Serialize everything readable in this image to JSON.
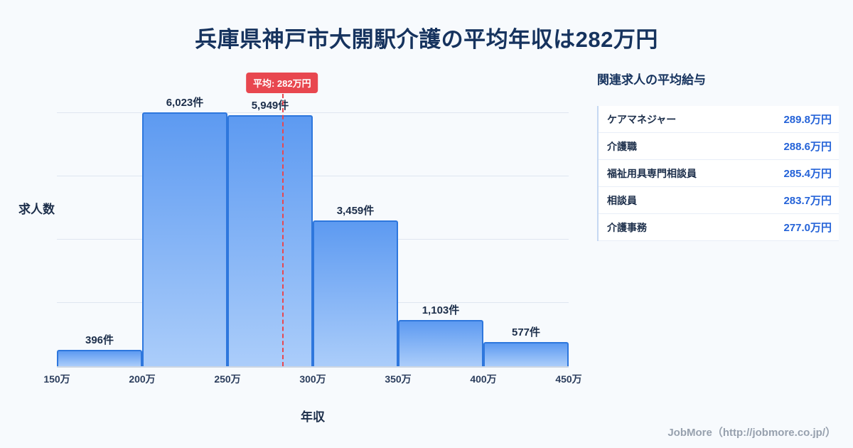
{
  "title": "兵庫県神戸市大開駅介護の平均年収は282万円",
  "chart_data": {
    "type": "bar",
    "title": "兵庫県神戸市大開駅介護の平均年収は282万円",
    "ylabel": "求人数",
    "xlabel": "年収",
    "categories": [
      "150万-200万",
      "200万-250万",
      "250万-300万",
      "300万-350万",
      "350万-400万",
      "400万-450万"
    ],
    "values": [
      396,
      6023,
      5949,
      3459,
      1103,
      577
    ],
    "value_labels": [
      "396件",
      "6,023件",
      "5,949件",
      "3,459件",
      "1,103件",
      "577件"
    ],
    "x_ticks": [
      "150万",
      "200万",
      "250万",
      "300万",
      "350万",
      "400万",
      "450万"
    ],
    "x_range": [
      150,
      450
    ],
    "ylim": [
      0,
      7000
    ],
    "gridlines": [
      1500,
      3000,
      4500,
      6000
    ],
    "grid": "horizontal-only",
    "legend": "none",
    "average": {
      "value": 282,
      "label": "平均: 282万円",
      "line_style": "dashed-red-vertical"
    }
  },
  "related_jobs": {
    "title": "関連求人の平均給与",
    "items": [
      {
        "label": "ケアマネジャー",
        "value": "289.8万円"
      },
      {
        "label": "介護職",
        "value": "288.6万円"
      },
      {
        "label": "福祉用具専門相談員",
        "value": "285.4万円"
      },
      {
        "label": "相談員",
        "value": "283.7万円"
      },
      {
        "label": "介護事務",
        "value": "277.0万円"
      }
    ]
  },
  "footer": {
    "credit": "JobMore（http://jobmore.co.jp/）"
  },
  "colors": {
    "accent_red": "#e8474f",
    "bar_border": "#2e77dd",
    "bar_top": "#5d9af1",
    "bar_bottom": "#abcdfa",
    "value_blue": "#2563d8",
    "title_navy": "#16335e",
    "background": "#f7fafd"
  }
}
